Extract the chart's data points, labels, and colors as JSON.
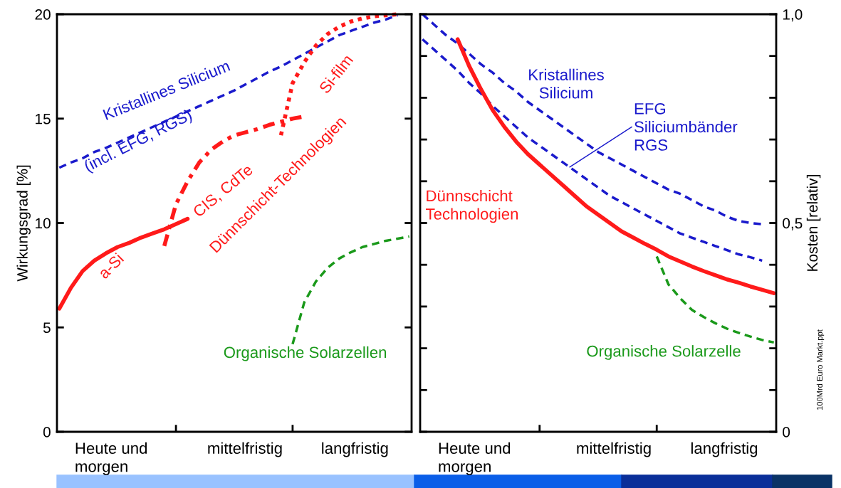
{
  "chart_data": [
    {
      "type": "line",
      "ylabel": "Wirkungsgrad [%]",
      "ylim": [
        0,
        20
      ],
      "yticks": [
        0,
        5,
        10,
        15,
        20
      ],
      "grid": false,
      "categories": [
        null,
        null,
        null,
        null,
        null,
        null,
        null,
        null,
        null,
        null,
        null,
        null,
        null,
        null,
        null,
        null,
        null,
        null,
        null,
        null,
        null,
        null,
        null,
        null,
        null,
        null,
        null,
        null,
        null,
        null,
        null
      ],
      "series": [
        {
          "color": "#1a1acc",
          "line_style": "dashed",
          "values": [
            12.65,
            12.9,
            13.1,
            13.4,
            13.6,
            13.85,
            14.1,
            14.35,
            14.6,
            14.85,
            15.1,
            15.35,
            15.6,
            15.85,
            16.1,
            16.35,
            16.65,
            16.95,
            17.25,
            17.5,
            17.8,
            18.1,
            18.4,
            18.7,
            19.0,
            19.2,
            19.4,
            19.6,
            19.75,
            19.95,
            null
          ]
        },
        {
          "color": "#ff1a1a",
          "line_style": "solid",
          "values": [
            5.9,
            6.9,
            7.7,
            8.2,
            8.55,
            8.85,
            9.05,
            9.3,
            9.5,
            9.7,
            9.95,
            10.2,
            null,
            null,
            null,
            null,
            null,
            null,
            null,
            null,
            null,
            null,
            null,
            null,
            null,
            null,
            null,
            null,
            null,
            null,
            null
          ]
        },
        {
          "color": "#ff1a1a",
          "line_style": "dashdot",
          "values": [
            null,
            null,
            null,
            null,
            null,
            null,
            null,
            null,
            null,
            8.9,
            10.9,
            12.0,
            12.9,
            13.5,
            13.9,
            14.2,
            14.35,
            14.5,
            14.7,
            14.85,
            15.0,
            15.1,
            null,
            null,
            null,
            null,
            null,
            null,
            null,
            null,
            null
          ]
        },
        {
          "color": "#ff1a1a",
          "line_style": "dotted",
          "values": [
            null,
            null,
            null,
            null,
            null,
            null,
            null,
            null,
            null,
            null,
            null,
            null,
            null,
            null,
            null,
            null,
            null,
            null,
            null,
            14.2,
            16.7,
            17.7,
            18.5,
            19.05,
            19.4,
            19.65,
            19.8,
            19.9,
            19.95,
            20.0,
            null
          ]
        },
        {
          "color": "#1a991a",
          "line_style": "dashed",
          "values": [
            null,
            null,
            null,
            null,
            null,
            null,
            null,
            null,
            null,
            null,
            null,
            null,
            null,
            null,
            null,
            null,
            null,
            null,
            null,
            null,
            4.2,
            6.2,
            7.2,
            7.85,
            8.3,
            8.6,
            8.85,
            9.0,
            9.15,
            9.25,
            9.35
          ]
        }
      ],
      "annotations": [
        "Kristallines Silicium",
        "(incl. EFG, RGS)",
        "a-Si",
        "CIS, CdTe",
        "Dünnschicht-Technologien",
        "Si-film",
        "Organische Solarzellen",
        "Heute und\nmorgen",
        "mittelfristig",
        "langfristig"
      ]
    },
    {
      "type": "line",
      "ylabel": "Kosten [relativ]",
      "ylim": [
        0,
        1.0
      ],
      "grid": false,
      "yticks": [
        {
          "value": 0,
          "label": "0"
        },
        {
          "value": 0.1,
          "label": null
        },
        {
          "value": 0.2,
          "label": null
        },
        {
          "value": 0.3,
          "label": null
        },
        {
          "value": 0.4,
          "label": null
        },
        {
          "value": 0.5,
          "label": "0,5"
        },
        {
          "value": 0.6,
          "label": null
        },
        {
          "value": 0.7,
          "label": null
        },
        {
          "value": 0.8,
          "label": null
        },
        {
          "value": 0.9,
          "label": null
        },
        {
          "value": 1.0,
          "label": "1,0"
        }
      ],
      "categories": [
        null,
        null,
        null,
        null,
        null,
        null,
        null,
        null,
        null,
        null,
        null,
        null,
        null,
        null,
        null,
        null,
        null,
        null,
        null,
        null,
        null,
        null,
        null,
        null,
        null,
        null,
        null,
        null,
        null,
        null,
        null
      ],
      "series": [
        {
          "color": "#1a1acc",
          "line_style": "dashed",
          "values": [
            1.0,
            0.975,
            0.95,
            0.93,
            0.905,
            0.88,
            0.86,
            0.835,
            0.815,
            0.79,
            0.77,
            0.75,
            0.73,
            0.71,
            0.69,
            0.67,
            0.655,
            0.64,
            0.625,
            0.61,
            0.595,
            0.58,
            0.57,
            0.555,
            0.54,
            0.53,
            0.515,
            0.505,
            0.5,
            0.497,
            null
          ]
        },
        {
          "color": "#1a1acc",
          "line_style": "dashed",
          "values": [
            0.94,
            0.915,
            0.89,
            0.865,
            0.835,
            0.81,
            0.78,
            0.755,
            0.73,
            0.705,
            0.685,
            0.665,
            0.645,
            0.625,
            0.605,
            0.585,
            0.565,
            0.55,
            0.535,
            0.52,
            0.505,
            0.49,
            0.475,
            0.465,
            0.455,
            0.445,
            0.435,
            0.425,
            0.418,
            0.41,
            null
          ]
        },
        {
          "color": "#ff1a1a",
          "line_style": "solid",
          "values": [
            null,
            null,
            null,
            0.94,
            0.875,
            0.82,
            0.77,
            0.73,
            0.695,
            0.665,
            0.64,
            0.615,
            0.59,
            0.565,
            0.54,
            0.52,
            0.5,
            0.48,
            0.465,
            0.45,
            0.436,
            0.42,
            0.408,
            0.396,
            0.385,
            0.375,
            0.365,
            0.357,
            0.348,
            0.34,
            0.332
          ]
        },
        {
          "color": "#1a991a",
          "line_style": "dashed",
          "values": [
            null,
            null,
            null,
            null,
            null,
            null,
            null,
            null,
            null,
            null,
            null,
            null,
            null,
            null,
            null,
            null,
            null,
            null,
            null,
            null,
            0.42,
            0.353,
            0.32,
            0.292,
            0.275,
            0.26,
            0.247,
            0.237,
            0.228,
            0.22,
            0.214
          ]
        }
      ],
      "annotations": [
        "Kristallines\nSilicium",
        "EFG\nSiliciumbänder\nRGS",
        "Dünnschicht\nTechnologien",
        "Organische Solarzelle",
        "Heute und\nmorgen",
        "mittelfristig",
        "langfristig",
        "100Mrd Euro Markt.ppt"
      ]
    }
  ]
}
